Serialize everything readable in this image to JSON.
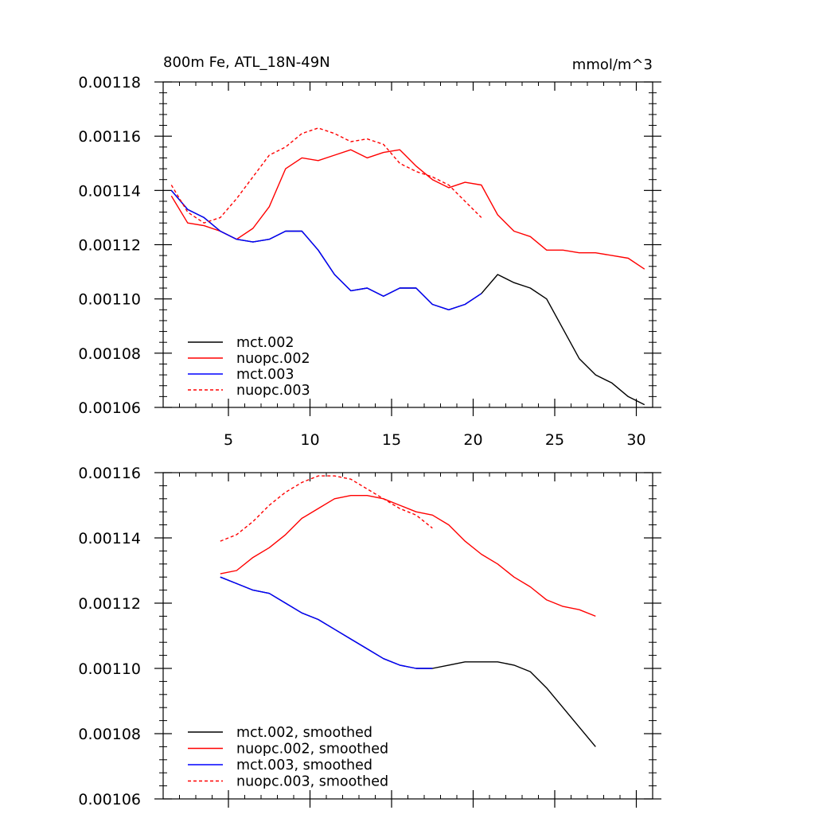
{
  "figure": {
    "title_left": "800m Fe, ATL_18N-49N",
    "title_right": "mmol/m^3"
  },
  "chart_data": [
    {
      "type": "line",
      "title": "800m Fe, ATL_18N-49N",
      "units": "mmol/m^3",
      "xlabel": "",
      "ylabel": "",
      "xlim": [
        1,
        31
      ],
      "ylim": [
        0.00106,
        0.00118
      ],
      "x_ticks": [
        5,
        10,
        15,
        20,
        25,
        30
      ],
      "y_ticks": [
        0.00106,
        0.00108,
        0.0011,
        0.00112,
        0.00114,
        0.00116,
        0.00118
      ],
      "y_tick_labels": [
        "0.00106",
        "0.00108",
        "0.00110",
        "0.00112",
        "0.00114",
        "0.00116",
        "0.00118"
      ],
      "x_tick_labels": [
        "5",
        "10",
        "15",
        "20",
        "25",
        "30"
      ],
      "legend_position": "bottom-left",
      "series": [
        {
          "name": "mct.002",
          "color": "#000000",
          "dash": "solid",
          "x": [
            1.5,
            2.5,
            3.5,
            4.5,
            5.5,
            6.5,
            7.5,
            8.5,
            9.5,
            10.5,
            11.5,
            12.5,
            13.5,
            14.5,
            15.5,
            16.5,
            17.5,
            18.5,
            19.5,
            20.5,
            21.5,
            22.5,
            23.5,
            24.5,
            25.5,
            26.5,
            27.5,
            28.5,
            29.5,
            30.5
          ],
          "values": [
            0.00114,
            0.001133,
            0.00113,
            0.001125,
            0.001122,
            0.001121,
            0.001122,
            0.001125,
            0.001125,
            0.001118,
            0.001109,
            0.001103,
            0.001104,
            0.001101,
            0.001104,
            0.001104,
            0.001098,
            0.001096,
            0.001098,
            0.001102,
            0.001109,
            0.001106,
            0.001104,
            0.0011,
            0.001089,
            0.001078,
            0.001072,
            0.001069,
            0.001064,
            0.001061
          ]
        },
        {
          "name": "nuopc.002",
          "color": "#ff0000",
          "dash": "solid",
          "x": [
            1.5,
            2.5,
            3.5,
            4.5,
            5.5,
            6.5,
            7.5,
            8.5,
            9.5,
            10.5,
            11.5,
            12.5,
            13.5,
            14.5,
            15.5,
            16.5,
            17.5,
            18.5,
            19.5,
            20.5,
            21.5,
            22.5,
            23.5,
            24.5,
            25.5,
            26.5,
            27.5,
            28.5,
            29.5,
            30.5
          ],
          "values": [
            0.001138,
            0.001128,
            0.001127,
            0.001125,
            0.001122,
            0.001126,
            0.001134,
            0.001148,
            0.001152,
            0.001151,
            0.001153,
            0.001155,
            0.001152,
            0.001154,
            0.001155,
            0.001149,
            0.001144,
            0.001141,
            0.001143,
            0.001142,
            0.001131,
            0.001125,
            0.001123,
            0.001118,
            0.001118,
            0.001117,
            0.001117,
            0.001116,
            0.001115,
            0.001111
          ]
        },
        {
          "name": "mct.003",
          "color": "#0000ff",
          "dash": "solid",
          "x": [
            1.5,
            2.5,
            3.5,
            4.5,
            5.5,
            6.5,
            7.5,
            8.5,
            9.5,
            10.5,
            11.5,
            12.5,
            13.5,
            14.5,
            15.5,
            16.5,
            17.5,
            18.5,
            19.5,
            20.5
          ],
          "values": [
            0.00114,
            0.001133,
            0.00113,
            0.001125,
            0.001122,
            0.001121,
            0.001122,
            0.001125,
            0.001125,
            0.001118,
            0.001109,
            0.001103,
            0.001104,
            0.001101,
            0.001104,
            0.001104,
            0.001098,
            0.001096,
            0.001098,
            0.001102
          ]
        },
        {
          "name": "nuopc.003",
          "color": "#ff0000",
          "dash": "dashed",
          "x": [
            1.5,
            2.5,
            3.5,
            4.5,
            5.5,
            6.5,
            7.5,
            8.5,
            9.5,
            10.5,
            11.5,
            12.5,
            13.5,
            14.5,
            15.5,
            16.5,
            17.5,
            18.5,
            19.5,
            20.5
          ],
          "values": [
            0.001142,
            0.001132,
            0.001128,
            0.00113,
            0.001137,
            0.001145,
            0.001153,
            0.001156,
            0.001161,
            0.001163,
            0.001161,
            0.001158,
            0.001159,
            0.001157,
            0.00115,
            0.001147,
            0.001145,
            0.001142,
            0.001136,
            0.00113
          ]
        }
      ]
    },
    {
      "type": "line",
      "title": "",
      "xlabel": "",
      "ylabel": "",
      "xlim": [
        1,
        31
      ],
      "ylim": [
        0.00106,
        0.00116
      ],
      "x_ticks": [
        5,
        10,
        15,
        20,
        25,
        30
      ],
      "y_ticks": [
        0.00106,
        0.00108,
        0.0011,
        0.00112,
        0.00114,
        0.00116
      ],
      "y_tick_labels": [
        "0.00106",
        "0.00108",
        "0.00110",
        "0.00112",
        "0.00114",
        "0.00116"
      ],
      "x_tick_labels": [],
      "legend_position": "bottom-left",
      "series": [
        {
          "name": "mct.002, smoothed",
          "color": "#000000",
          "dash": "solid",
          "x": [
            4.5,
            5.5,
            6.5,
            7.5,
            8.5,
            9.5,
            10.5,
            11.5,
            12.5,
            13.5,
            14.5,
            15.5,
            16.5,
            17.5,
            18.5,
            19.5,
            20.5,
            21.5,
            22.5,
            23.5,
            24.5,
            25.5,
            26.5,
            27.5
          ],
          "values": [
            0.001128,
            0.001126,
            0.001124,
            0.001123,
            0.00112,
            0.001117,
            0.001115,
            0.001112,
            0.001109,
            0.001106,
            0.001103,
            0.001101,
            0.0011,
            0.0011,
            0.001101,
            0.001102,
            0.001102,
            0.001102,
            0.001101,
            0.001099,
            0.001094,
            0.001088,
            0.001082,
            0.001076
          ]
        },
        {
          "name": "nuopc.002, smoothed",
          "color": "#ff0000",
          "dash": "solid",
          "x": [
            4.5,
            5.5,
            6.5,
            7.5,
            8.5,
            9.5,
            10.5,
            11.5,
            12.5,
            13.5,
            14.5,
            15.5,
            16.5,
            17.5,
            18.5,
            19.5,
            20.5,
            21.5,
            22.5,
            23.5,
            24.5,
            25.5,
            26.5,
            27.5
          ],
          "values": [
            0.001129,
            0.00113,
            0.001134,
            0.001137,
            0.001141,
            0.001146,
            0.001149,
            0.001152,
            0.001153,
            0.001153,
            0.001152,
            0.00115,
            0.001148,
            0.001147,
            0.001144,
            0.001139,
            0.001135,
            0.001132,
            0.001128,
            0.001125,
            0.001121,
            0.001119,
            0.001118,
            0.001116
          ]
        },
        {
          "name": "mct.003, smoothed",
          "color": "#0000ff",
          "dash": "solid",
          "x": [
            4.5,
            5.5,
            6.5,
            7.5,
            8.5,
            9.5,
            10.5,
            11.5,
            12.5,
            13.5,
            14.5,
            15.5,
            16.5,
            17.5
          ],
          "values": [
            0.001128,
            0.001126,
            0.001124,
            0.001123,
            0.00112,
            0.001117,
            0.001115,
            0.001112,
            0.001109,
            0.001106,
            0.001103,
            0.001101,
            0.0011,
            0.0011
          ]
        },
        {
          "name": "nuopc.003, smoothed",
          "color": "#ff0000",
          "dash": "dashed",
          "x": [
            4.5,
            5.5,
            6.5,
            7.5,
            8.5,
            9.5,
            10.5,
            11.5,
            12.5,
            13.5,
            14.5,
            15.5,
            16.5,
            17.5
          ],
          "values": [
            0.001139,
            0.001141,
            0.001145,
            0.00115,
            0.001154,
            0.001157,
            0.001159,
            0.001159,
            0.001158,
            0.001155,
            0.001152,
            0.001149,
            0.001147,
            0.001143
          ]
        }
      ]
    }
  ]
}
